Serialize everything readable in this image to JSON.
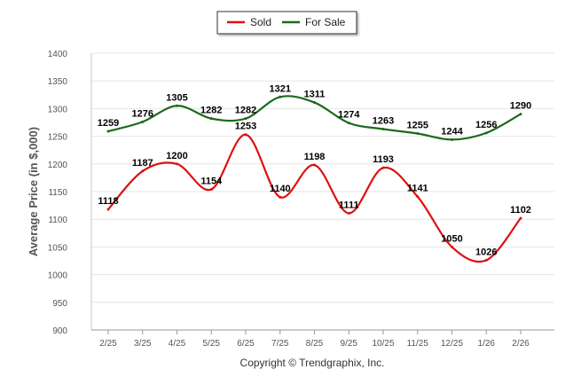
{
  "chart_data": {
    "type": "line",
    "categories": [
      "2/25",
      "3/25",
      "4/25",
      "5/25",
      "6/25",
      "7/25",
      "8/25",
      "9/25",
      "10/25",
      "11/25",
      "12/25",
      "1/26",
      "2/26"
    ],
    "series": [
      {
        "name": "Sold",
        "color": "#dd1111",
        "values": [
          1118,
          1187,
          1200,
          1154,
          1253,
          1140,
          1198,
          1111,
          1193,
          1141,
          1050,
          1026,
          1102
        ]
      },
      {
        "name": "For Sale",
        "color": "#1b6b1b",
        "values": [
          1259,
          1276,
          1305,
          1282,
          1282,
          1321,
          1311,
          1274,
          1263,
          1255,
          1244,
          1256,
          1290
        ]
      }
    ],
    "title": "",
    "xlabel": "",
    "ylabel": "Average Price (in $,000)",
    "ylim": [
      900,
      1400
    ],
    "yticks": [
      900,
      950,
      1000,
      1050,
      1100,
      1150,
      1200,
      1250,
      1300,
      1350,
      1400
    ],
    "grid": true,
    "legend": "top-center"
  },
  "footer": {
    "copyright": "Copyright © Trendgraphix, Inc."
  }
}
